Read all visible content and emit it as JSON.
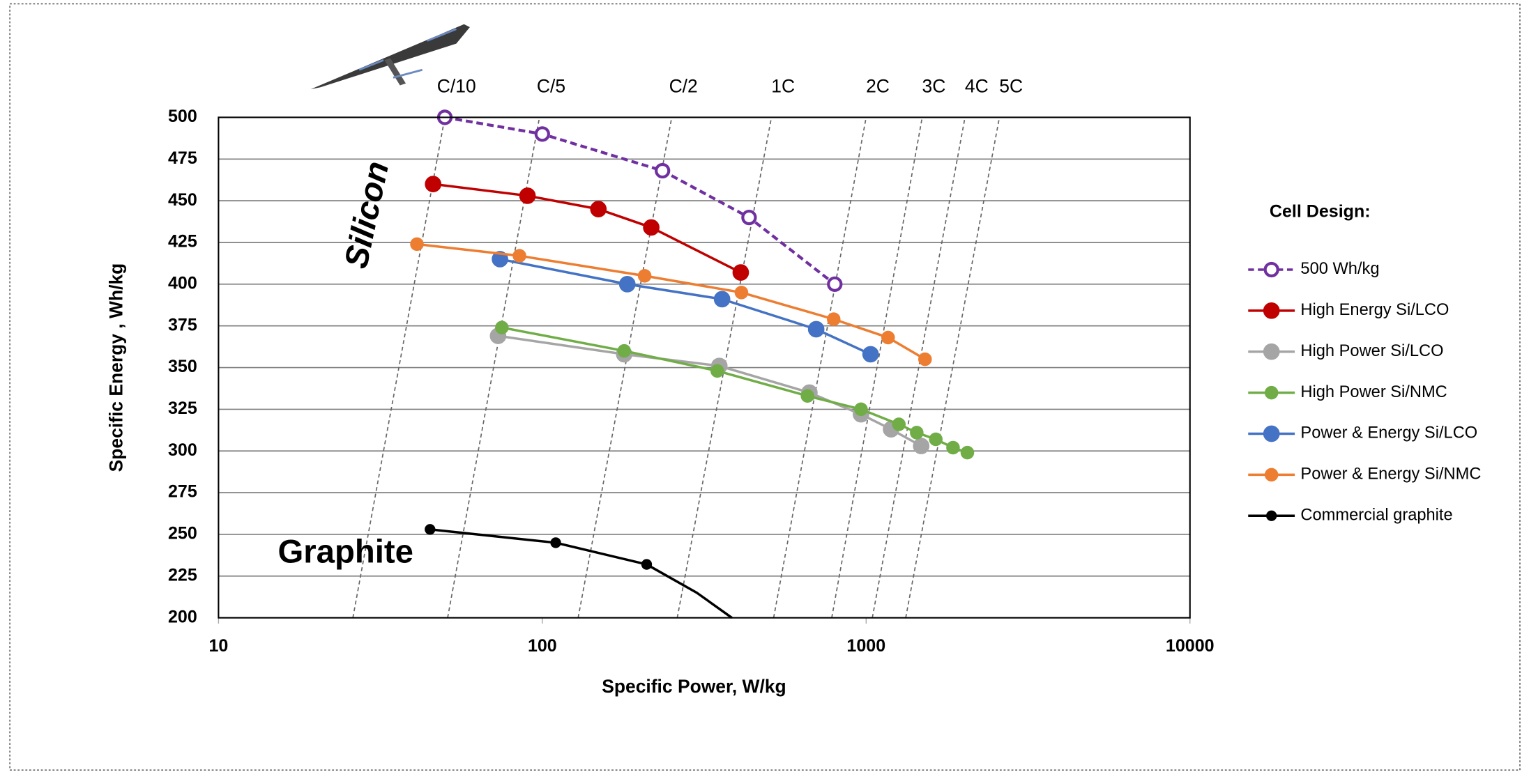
{
  "chart_data": {
    "type": "line",
    "x_label": "Specific Power, W/kg",
    "y_label": "Specific Energy , Wh/kg",
    "log_x": true,
    "xlim": [
      10,
      10000
    ],
    "xticks": [
      10,
      100,
      1000,
      10000
    ],
    "ylim": [
      200,
      500
    ],
    "yticks": [
      200,
      225,
      250,
      275,
      300,
      325,
      350,
      375,
      400,
      425,
      450,
      475,
      500
    ],
    "grid": true,
    "legend_title": "Cell Design:",
    "legend": "right",
    "annotations": [
      "Silicon",
      "Graphite"
    ],
    "rate_lines": [
      {
        "label": "C/10",
        "x": [
          26,
          50
        ]
      },
      {
        "label": "C/5",
        "x": [
          51,
          98
        ]
      },
      {
        "label": "C/2",
        "x": [
          129,
          251
        ]
      },
      {
        "label": "1C",
        "x": [
          261,
          510
        ]
      },
      {
        "label": "2C",
        "x": [
          518,
          1000
        ]
      },
      {
        "label": "3C",
        "x": [
          783,
          1490
        ]
      },
      {
        "label": "4C",
        "x": [
          1045,
          2020
        ]
      },
      {
        "label": "5C",
        "x": [
          1325,
          2580
        ]
      }
    ],
    "series": [
      {
        "name": "500 Wh/kg",
        "color": "#7030a0",
        "marker": "open",
        "dashed": true,
        "x": [
          50,
          100,
          235,
          435,
          800
        ],
        "values": [
          500,
          490,
          468,
          440,
          400
        ]
      },
      {
        "name": "High Energy Si/LCO",
        "color": "#c00000",
        "marker": "filled",
        "x": [
          46,
          90,
          149,
          217,
          410
        ],
        "values": [
          460,
          453,
          445,
          434,
          407
        ]
      },
      {
        "name": "High Power Si/LCO",
        "color": "#a5a5a5",
        "marker": "filled",
        "x": [
          73,
          179,
          352,
          668,
          964,
          1194,
          1479
        ],
        "values": [
          369,
          358,
          351,
          335,
          322,
          313,
          303
        ]
      },
      {
        "name": "High Power Si/NMC",
        "color": "#70ad47",
        "marker": "small",
        "x": [
          75,
          179,
          347,
          659,
          964,
          1262,
          1433,
          1641,
          1855,
          2054
        ],
        "values": [
          374,
          360,
          348,
          333,
          325,
          316,
          311,
          307,
          302,
          299
        ]
      },
      {
        "name": "Power & Energy Si/LCO",
        "color": "#4472c4",
        "marker": "filled",
        "x": [
          74,
          183,
          359,
          701,
          1032
        ],
        "values": [
          415,
          400,
          391,
          373,
          358
        ]
      },
      {
        "name": "Power & Energy Si/NMC",
        "color": "#ed7d31",
        "marker": "small",
        "x": [
          41,
          85,
          207,
          412,
          794,
          1169,
          1520
        ],
        "values": [
          424,
          417,
          405,
          395,
          379,
          368,
          355
        ]
      },
      {
        "name": "Commercial graphite",
        "color": "#000000",
        "marker": "tiny",
        "markers": [
          true,
          true,
          true,
          false,
          false
        ],
        "x": [
          45,
          110,
          210,
          300,
          385
        ],
        "values": [
          253,
          245,
          232,
          215,
          200
        ]
      }
    ]
  }
}
